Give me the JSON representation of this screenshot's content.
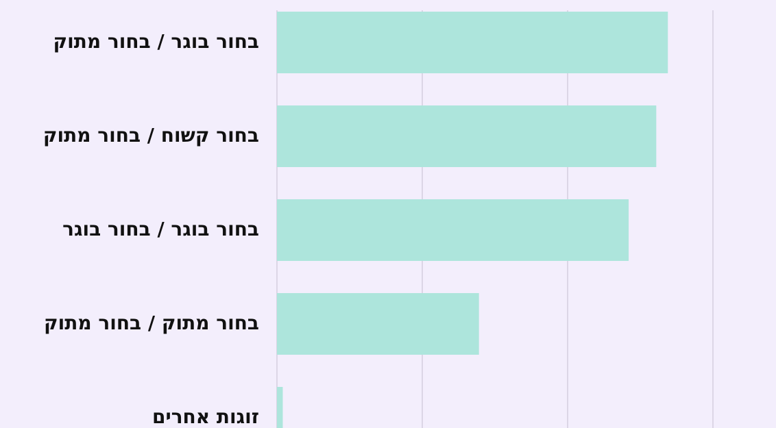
{
  "chart_data": {
    "type": "hbar",
    "categories": [
      "בחור בוגר / בחור מתוק",
      "בחור קשוח / בחור מתוק",
      "בחור בוגר / בחור בוגר",
      "בחור מתוק / בחור מתוק",
      "זוגות אחרים"
    ],
    "values": [
      26.9,
      26.1,
      24.2,
      13.9,
      0.4
    ],
    "color": "#ade5dc",
    "xlim": [
      0,
      30
    ],
    "gridlines": [
      0,
      10,
      20,
      30
    ],
    "grid_color": "#dcd6e6"
  }
}
